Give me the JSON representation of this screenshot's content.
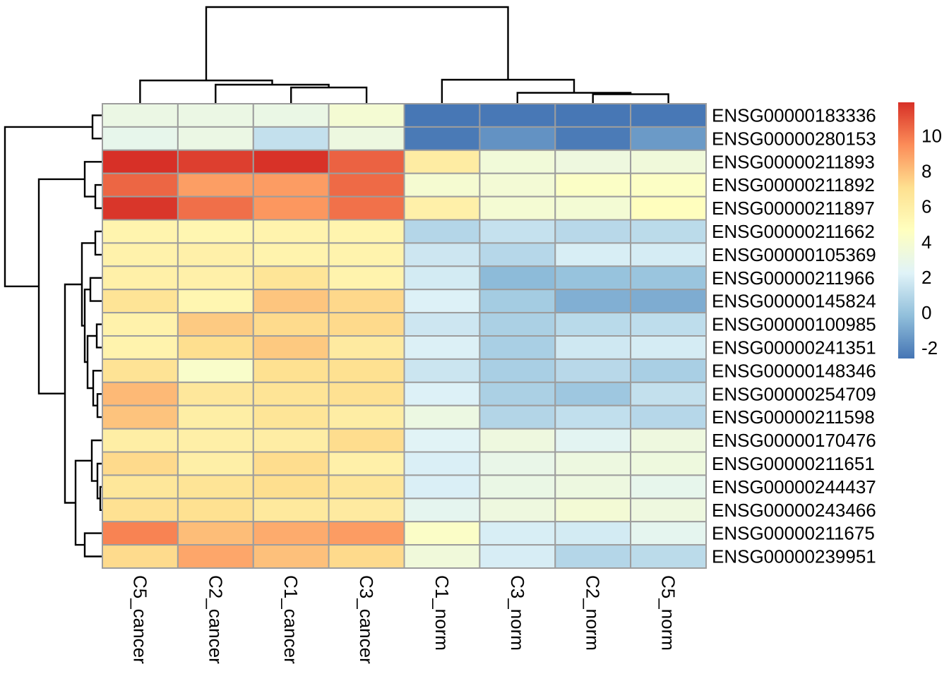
{
  "chart_data": {
    "type": "heatmap",
    "title": "",
    "columns": [
      "C5_cancer",
      "C2_cancer",
      "C1_cancer",
      "C3_cancer",
      "C1_norm",
      "C3_norm",
      "C2_norm",
      "C5_norm"
    ],
    "rows": [
      "ENSG00000183336",
      "ENSG00000280153",
      "ENSG00000211893",
      "ENSG00000211892",
      "ENSG00000211897",
      "ENSG00000211662",
      "ENSG00000105369",
      "ENSG00000211966",
      "ENSG00000145824",
      "ENSG00000100985",
      "ENSG00000241351",
      "ENSG00000148346",
      "ENSG00000254709",
      "ENSG00000211598",
      "ENSG00000170476",
      "ENSG00000211651",
      "ENSG00000244437",
      "ENSG00000243466",
      "ENSG00000211675",
      "ENSG00000239951"
    ],
    "values": [
      [
        3.1,
        3.1,
        3.05,
        3.8,
        -2.55,
        -2.5,
        -2.55,
        -2.5
      ],
      [
        2.8,
        3.1,
        1.35,
        3.25,
        -2.45,
        -1.65,
        -2.4,
        -1.4
      ],
      [
        11.9,
        11.5,
        11.85,
        10.6,
        6.1,
        3.55,
        3.3,
        3.5
      ],
      [
        10.5,
        9.0,
        9.05,
        10.4,
        3.9,
        3.7,
        4.35,
        4.4
      ],
      [
        11.75,
        10.25,
        9.2,
        10.2,
        5.8,
        3.8,
        3.75,
        4.7
      ],
      [
        5.5,
        5.35,
        5.6,
        5.5,
        0.9,
        1.4,
        1.0,
        1.1
      ],
      [
        5.7,
        5.8,
        5.55,
        5.6,
        1.65,
        0.95,
        2.0,
        1.9
      ],
      [
        5.85,
        5.8,
        6.7,
        5.55,
        1.85,
        -0.3,
        0.0,
        0.1
      ],
      [
        6.75,
        5.35,
        7.85,
        7.3,
        2.15,
        0.4,
        -0.7,
        -0.8
      ],
      [
        5.7,
        7.7,
        7.2,
        7.25,
        1.65,
        0.6,
        1.05,
        1.2
      ],
      [
        5.6,
        7.1,
        7.75,
        6.25,
        2.1,
        0.55,
        1.7,
        1.9
      ],
      [
        6.8,
        4.2,
        7.0,
        7.0,
        1.6,
        0.55,
        1.0,
        0.55
      ],
      [
        8.2,
        6.5,
        6.75,
        6.95,
        2.15,
        0.6,
        0.2,
        1.35
      ],
      [
        7.9,
        6.0,
        6.7,
        6.05,
        3.15,
        0.85,
        1.3,
        0.95
      ],
      [
        6.0,
        5.9,
        6.05,
        7.15,
        2.3,
        3.3,
        2.5,
        3.3
      ],
      [
        7.25,
        5.9,
        7.15,
        5.8,
        2.05,
        2.9,
        3.25,
        3.35
      ],
      [
        6.55,
        6.75,
        7.1,
        6.6,
        2.05,
        3.05,
        3.25,
        2.75
      ],
      [
        6.95,
        7.0,
        6.4,
        6.25,
        2.6,
        3.3,
        3.7,
        3.3
      ],
      [
        9.75,
        8.1,
        8.6,
        9.05,
        4.3,
        2.0,
        1.85,
        2.6
      ],
      [
        7.2,
        8.75,
        8.0,
        7.25,
        3.5,
        1.95,
        0.9,
        1.1
      ]
    ],
    "color_scale": {
      "min": -2.6,
      "max": 11.9,
      "palette_low_to_high": [
        "#4575b4",
        "#91bfdb",
        "#e0f3f8",
        "#ffffbf",
        "#fee090",
        "#fc8d59",
        "#d73027"
      ],
      "legend_ticks": [
        10,
        8,
        6,
        4,
        2,
        0,
        -2
      ]
    },
    "cell_border_color": "#9d9d9d",
    "dendrogram_color": "#000000",
    "label_color": "#000000",
    "column_dendrogram": {
      "merges": [
        [
          "L2",
          "L3",
          124
        ],
        [
          "L1",
          "M0",
          120
        ],
        [
          "L0",
          "M1",
          114
        ],
        [
          "L6",
          "L7",
          133.5
        ],
        [
          "L5",
          "M3",
          131.5
        ],
        [
          "L4",
          "M4",
          113
        ],
        [
          "M2",
          "M5",
          10
        ]
      ]
    },
    "row_dendrogram": {
      "merges": [
        [
          "L0",
          "L1",
          131
        ],
        [
          "L3",
          "L4",
          135
        ],
        [
          "L2",
          "M1",
          120
        ],
        [
          "L5",
          "L6",
          135
        ],
        [
          "L7",
          "L8",
          128
        ],
        [
          "L9",
          "L10",
          137
        ],
        [
          "L12",
          "L13",
          138
        ],
        [
          "L11",
          "M6",
          132
        ],
        [
          "M5",
          "M7",
          124
        ],
        [
          "M4",
          "M8",
          120
        ],
        [
          "M3",
          "M9",
          116
        ],
        [
          "L16",
          "L17",
          142
        ],
        [
          "L15",
          "M11",
          138
        ],
        [
          "L14",
          "M12",
          130
        ],
        [
          "L18",
          "L19",
          120
        ],
        [
          "M13",
          "M14",
          107
        ],
        [
          "M10",
          "M15",
          92
        ],
        [
          "M2",
          "M16",
          55
        ],
        [
          "M0",
          "M17",
          7
        ]
      ]
    }
  }
}
